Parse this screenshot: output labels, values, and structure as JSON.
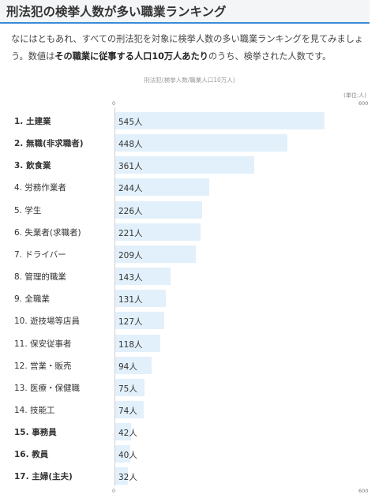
{
  "heading": "刑法犯の検挙人数が多い職業ランキング",
  "intro": {
    "line1": "なにはともあれ、すべての刑法犯を対象に検挙人数の多い職業ランキングを見てみましょ",
    "line2_pre": "う。数値は",
    "line2_bold": "その職業に従事する人口10万人あたり",
    "line2_post": "のうち、検挙された人数です。"
  },
  "chart_data": {
    "type": "bar",
    "title": "刑法犯(検挙人数/職業人口10万人)",
    "unit_note": "(単位:人)",
    "xlim": [
      0,
      600
    ],
    "tick_labels": [
      "0",
      "600"
    ],
    "value_suffix": "人",
    "categories": [
      "1. 土建業",
      "2. 無職(非求職者)",
      "3. 飲食業",
      "4. 労務作業者",
      "5. 学生",
      "6. 失業者(求職者)",
      "7. ドライバー",
      "8. 管理的職業",
      "9. 全職業",
      "10. 遊技場等店員",
      "11. 保安従事者",
      "12. 営業・販売",
      "13. 医療・保健職",
      "14. 技能工",
      "15. 事務員",
      "16. 教員",
      "17. 主婦(主夫)"
    ],
    "values": [
      545,
      448,
      361,
      244,
      226,
      221,
      209,
      143,
      131,
      127,
      118,
      94,
      75,
      74,
      42,
      40,
      32
    ],
    "bold_labels": [
      true,
      true,
      true,
      false,
      false,
      false,
      false,
      false,
      false,
      false,
      false,
      false,
      false,
      false,
      true,
      true,
      true
    ],
    "bar_color": "#e2f0fb"
  },
  "colors": {
    "accent": "#3b8ad8"
  }
}
